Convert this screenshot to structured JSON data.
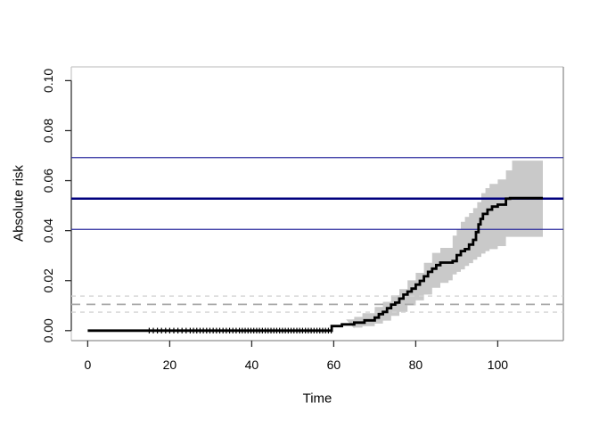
{
  "chart_data": {
    "type": "line",
    "subtype": "step-cumulative-incidence",
    "title": "",
    "xlabel": "Time",
    "ylabel": "Absolute risk",
    "xlim": [
      -4.0,
      116.0
    ],
    "ylim": [
      -0.004,
      0.1055
    ],
    "grid": false,
    "legend_position": "none",
    "x_ticks": {
      "values": [
        0,
        20,
        40,
        60,
        80,
        100
      ],
      "labels": [
        "0",
        "20",
        "40",
        "60",
        "80",
        "100"
      ]
    },
    "y_ticks": {
      "values": [
        0,
        0.02,
        0.04,
        0.06,
        0.08,
        0.1
      ],
      "labels": [
        "0.00",
        "0.02",
        "0.04",
        "0.06",
        "0.08",
        "0.10"
      ]
    },
    "series": [
      {
        "name": "absolute-risk-curve",
        "draw": "step",
        "color": "#000000",
        "width": 2.8,
        "x": [
          0,
          59.5,
          62,
          65,
          67.5,
          70,
          71,
          72,
          73,
          74,
          75,
          76,
          77,
          78,
          79,
          80,
          81,
          82,
          83,
          84,
          85,
          86,
          89,
          90,
          91,
          92,
          93,
          94,
          94.7,
          95.3,
          95.8,
          96.4,
          97.5,
          98.6,
          100,
          102,
          103,
          111
        ],
        "y": [
          0,
          0.0018,
          0.0025,
          0.0032,
          0.0041,
          0.0052,
          0.0066,
          0.0075,
          0.009,
          0.0104,
          0.0112,
          0.0128,
          0.0144,
          0.0156,
          0.0168,
          0.0184,
          0.0199,
          0.0217,
          0.0235,
          0.0248,
          0.0262,
          0.0272,
          0.0278,
          0.0302,
          0.0318,
          0.0326,
          0.0344,
          0.0363,
          0.0394,
          0.0425,
          0.0447,
          0.0467,
          0.0484,
          0.0496,
          0.0504,
          0.0528,
          0.053,
          0.053
        ]
      }
    ],
    "confidence_band": {
      "name": "confidence-band",
      "color": "#c9c9c9",
      "x": [
        63,
        65,
        67,
        70,
        72,
        74,
        76,
        78,
        80,
        82,
        84,
        86,
        88,
        89,
        90,
        91,
        92,
        93,
        94,
        95,
        96,
        97,
        98,
        100,
        102,
        103.5,
        111
      ],
      "lower": [
        0.0008,
        0.0012,
        0.0018,
        0.0028,
        0.004,
        0.0059,
        0.0075,
        0.0101,
        0.0121,
        0.0144,
        0.0171,
        0.0191,
        0.0201,
        0.0225,
        0.0235,
        0.0245,
        0.0259,
        0.027,
        0.0284,
        0.0295,
        0.0308,
        0.0318,
        0.0326,
        0.0338,
        0.0375,
        0.0375,
        0.0375
      ],
      "upper": [
        0.0045,
        0.0055,
        0.007,
        0.0095,
        0.0115,
        0.0141,
        0.0166,
        0.0201,
        0.0231,
        0.0271,
        0.0311,
        0.0331,
        0.0331,
        0.038,
        0.0405,
        0.0435,
        0.0455,
        0.047,
        0.049,
        0.0514,
        0.055,
        0.057,
        0.0587,
        0.0605,
        0.0641,
        0.068,
        0.068
      ]
    },
    "censor_marks": {
      "name": "censor-marks",
      "color": "#000000",
      "y": 0,
      "times": [
        15,
        16,
        17,
        18,
        19,
        20,
        21,
        22,
        23,
        24,
        25,
        25.8,
        26.6,
        27.4,
        28.2,
        29,
        29.8,
        30.6,
        31.4,
        32.2,
        33,
        33.8,
        34.6,
        35.4,
        36.2,
        37,
        37.7,
        38.4,
        39.1,
        39.8,
        40.5,
        41.2,
        41.9,
        42.6,
        43.3,
        44,
        44.7,
        45.4,
        46.1,
        46.8,
        47.5,
        48.2,
        48.9,
        49.6,
        50.3,
        51,
        51.7,
        52.4,
        53.1,
        53.8,
        54.5,
        55.2,
        55.9,
        56.6,
        57.3,
        58,
        58.7,
        59.4
      ]
    },
    "reference_lines": [
      {
        "name": "risk-upper-ci-line",
        "y": 0.0692,
        "color": "#2b2b9e",
        "width": 1.3,
        "style": "solid"
      },
      {
        "name": "risk-estimate-line",
        "y": 0.0528,
        "color": "#00007e",
        "width": 2.4,
        "style": "solid"
      },
      {
        "name": "risk-lower-ci-line",
        "y": 0.0405,
        "color": "#2b2b9e",
        "width": 1.3,
        "style": "solid"
      },
      {
        "name": "comparison-upper-ci-line",
        "y": 0.0138,
        "color": "#d4d4d4",
        "width": 1.4,
        "style": "dashed",
        "dash": "5 5"
      },
      {
        "name": "comparison-estimate-line",
        "y": 0.0105,
        "color": "#a9a9a9",
        "width": 1.7,
        "style": "dashed",
        "dash": "10 7"
      },
      {
        "name": "comparison-lower-ci-line",
        "y": 0.0074,
        "color": "#d4d4d4",
        "width": 1.4,
        "style": "dashed",
        "dash": "5 5"
      }
    ],
    "colors": {
      "background": "#ffffff",
      "box_light": "#c6c6c6",
      "box_dark": "#8f8f8f",
      "y_axis": "#3a3a3a",
      "tick": "#2e2e2e",
      "tick_text": "#000000"
    }
  }
}
